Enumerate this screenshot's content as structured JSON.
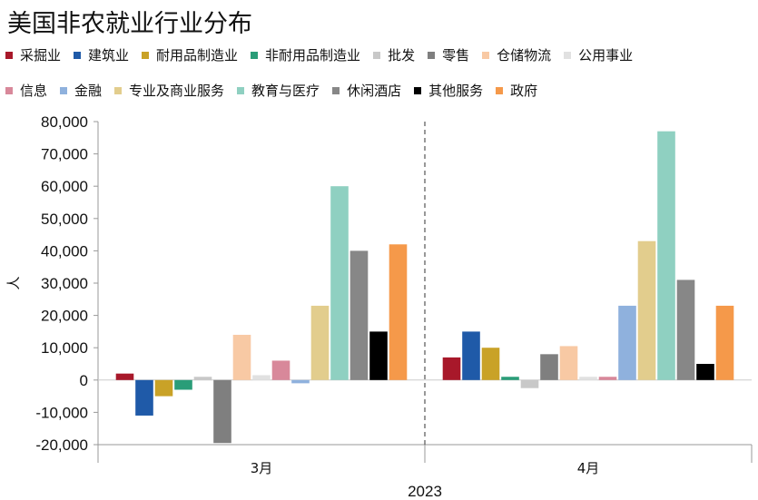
{
  "chart_data": {
    "type": "bar",
    "title": "美国非农就业行业分布",
    "ylabel": "人",
    "xlabel": "2023",
    "ylim": [
      -20000,
      80000
    ],
    "yticks": [
      "-20,000",
      "-10,000",
      "0",
      "10,000",
      "20,000",
      "30,000",
      "40,000",
      "50,000",
      "60,000",
      "70,000",
      "80,000"
    ],
    "ytick_values": [
      -20000,
      -10000,
      0,
      10000,
      20000,
      30000,
      40000,
      50000,
      60000,
      70000,
      80000
    ],
    "categories": [
      "3月",
      "4月"
    ],
    "series": [
      {
        "name": "采掘业",
        "color": "#a8182a",
        "values": [
          2000,
          7000
        ]
      },
      {
        "name": "建筑业",
        "color": "#1f5aa8",
        "values": [
          -11000,
          15000
        ]
      },
      {
        "name": "耐用品制造业",
        "color": "#c9a227",
        "values": [
          -5000,
          10000
        ]
      },
      {
        "name": "非耐用品制造业",
        "color": "#2a9d78",
        "values": [
          -3000,
          1000
        ]
      },
      {
        "name": "批发",
        "color": "#c8c8c8",
        "values": [
          1000,
          -2500
        ]
      },
      {
        "name": "零售",
        "color": "#7f7f7f",
        "values": [
          -19500,
          8000
        ]
      },
      {
        "name": "仓储物流",
        "color": "#f8c9a4",
        "values": [
          14000,
          10500
        ]
      },
      {
        "name": "公用事业",
        "color": "#e1e1e1",
        "values": [
          1500,
          1000
        ]
      },
      {
        "name": "信息",
        "color": "#d8889a",
        "values": [
          6000,
          1000
        ]
      },
      {
        "name": "金融",
        "color": "#8fb1dd",
        "values": [
          -1000,
          23000
        ]
      },
      {
        "name": "专业及商业服务",
        "color": "#e2cd8d",
        "values": [
          23000,
          43000
        ]
      },
      {
        "name": "教育与医疗",
        "color": "#8fd0c1",
        "values": [
          60000,
          77000
        ]
      },
      {
        "name": "休闲酒店",
        "color": "#878787",
        "values": [
          40000,
          31000
        ]
      },
      {
        "name": "其他服务",
        "color": "#000000",
        "values": [
          15000,
          5000
        ]
      },
      {
        "name": "政府",
        "color": "#f5994a",
        "values": [
          42000,
          23000
        ]
      }
    ],
    "legend_rows": [
      [
        "采掘业",
        "建筑业",
        "耐用品制造业",
        "非耐用品制造业",
        "批发",
        "零售",
        "仓储物流",
        "公用事业"
      ],
      [
        "信息",
        "金融",
        "专业及商业服务",
        "教育与医疗",
        "休闲酒店",
        "其他服务",
        "政府"
      ]
    ]
  }
}
